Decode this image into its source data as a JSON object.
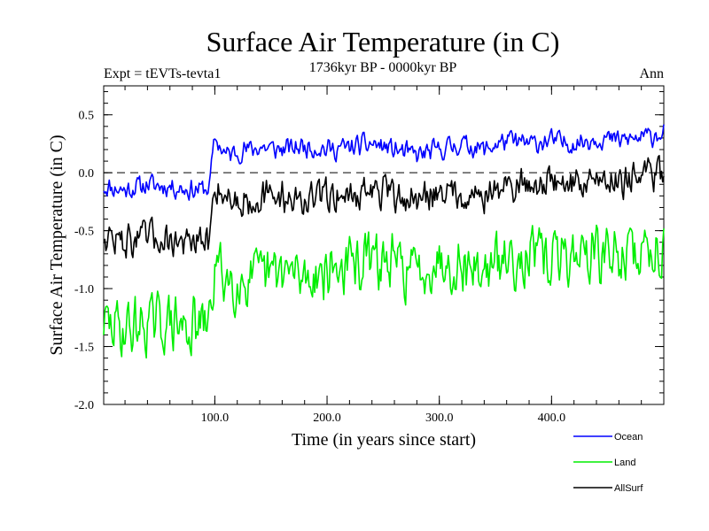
{
  "chart_data": {
    "type": "line",
    "title": "Surface Air Temperature (in C)",
    "subtitle_left": "Expt = tEVTs-tevta1",
    "subtitle_center": "1736kyr BP - 0000kyr BP",
    "subtitle_right": "Ann",
    "xlabel": "Time (in years since start)",
    "ylabel": "Surface Air Temperature (in C)",
    "xlim": [
      1,
      500
    ],
    "ylim": [
      -2.0,
      0.75
    ],
    "x_ticks": [
      100,
      200,
      300,
      400
    ],
    "x_tick_labels": [
      "100.0",
      "200.0",
      "300.0",
      "400.0"
    ],
    "y_ticks": [
      -2.0,
      -1.5,
      -1.0,
      -0.5,
      0.0,
      0.5
    ],
    "y_tick_labels": [
      "-2.0",
      "-1.5",
      "-1.0",
      "-0.5",
      "0.0",
      "0.5"
    ],
    "reference_line": 0.0,
    "legend_position": "bottom-right",
    "series": [
      {
        "name": "Ocean",
        "color": "#0000ff",
        "x": [
          1,
          20,
          40,
          60,
          80,
          95,
          100,
          110,
          120,
          140,
          160,
          180,
          200,
          220,
          240,
          260,
          280,
          300,
          320,
          340,
          360,
          380,
          400,
          420,
          440,
          460,
          480,
          500
        ],
        "values": [
          -0.12,
          -0.15,
          -0.1,
          -0.12,
          -0.15,
          -0.13,
          0.3,
          0.15,
          0.18,
          0.22,
          0.2,
          0.23,
          0.2,
          0.22,
          0.25,
          0.2,
          0.15,
          0.2,
          0.25,
          0.2,
          0.28,
          0.25,
          0.28,
          0.25,
          0.3,
          0.28,
          0.3,
          0.35
        ]
      },
      {
        "name": "Land",
        "color": "#00ee00",
        "x": [
          1,
          20,
          40,
          60,
          80,
          95,
          100,
          110,
          120,
          140,
          160,
          180,
          200,
          220,
          240,
          260,
          280,
          300,
          320,
          340,
          360,
          380,
          400,
          420,
          440,
          460,
          480,
          500
        ],
        "values": [
          -1.3,
          -1.35,
          -1.3,
          -1.3,
          -1.35,
          -1.3,
          -0.8,
          -0.9,
          -0.95,
          -0.9,
          -0.85,
          -0.9,
          -0.85,
          -0.8,
          -0.75,
          -0.8,
          -0.85,
          -0.75,
          -0.8,
          -0.85,
          -0.75,
          -0.7,
          -0.75,
          -0.7,
          -0.7,
          -0.72,
          -0.68,
          -0.65
        ]
      },
      {
        "name": "AllSurf",
        "color": "#000000",
        "x": [
          1,
          20,
          40,
          60,
          80,
          95,
          100,
          110,
          120,
          140,
          160,
          180,
          200,
          220,
          240,
          260,
          280,
          300,
          320,
          340,
          360,
          380,
          400,
          420,
          440,
          460,
          480,
          500
        ],
        "values": [
          -0.55,
          -0.6,
          -0.55,
          -0.58,
          -0.62,
          -0.6,
          -0.1,
          -0.2,
          -0.25,
          -0.22,
          -0.2,
          -0.25,
          -0.18,
          -0.2,
          -0.15,
          -0.2,
          -0.25,
          -0.15,
          -0.18,
          -0.2,
          -0.12,
          -0.1,
          -0.08,
          -0.1,
          -0.05,
          -0.06,
          -0.03,
          0.0
        ]
      }
    ]
  }
}
